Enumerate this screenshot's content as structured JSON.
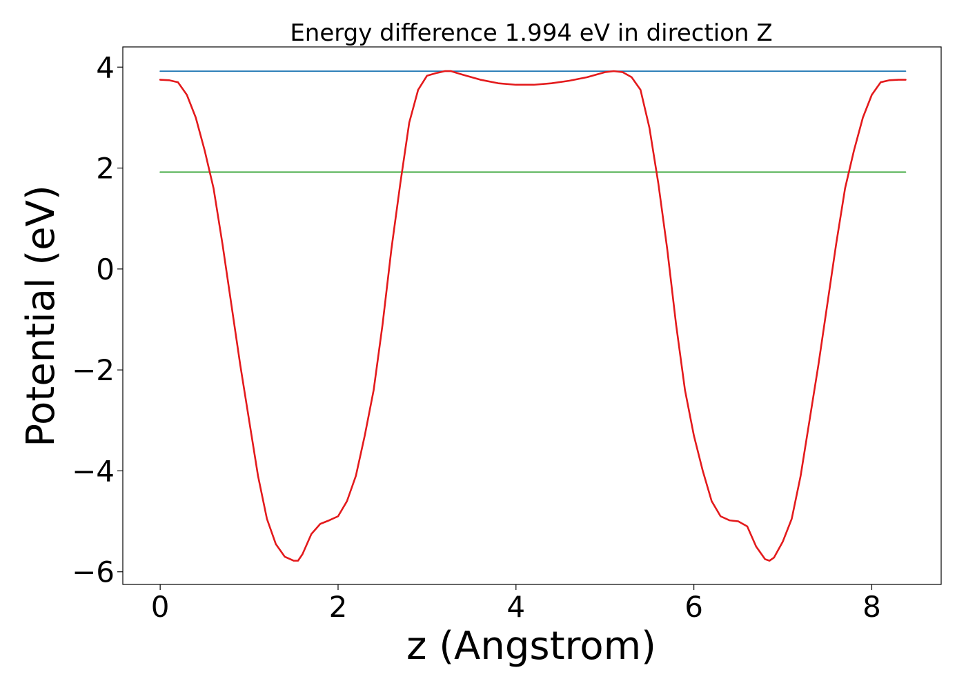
{
  "chart_data": {
    "type": "line",
    "title": "Energy difference 1.994 eV in direction Z",
    "xlabel": "z (Angstrom)",
    "ylabel": "Potential (eV)",
    "xlim": [
      -0.42,
      8.78
    ],
    "ylim": [
      -6.25,
      4.4
    ],
    "xticks": [
      0,
      2,
      4,
      6,
      8
    ],
    "yticks": [
      -6,
      -4,
      -2,
      0,
      2,
      4
    ],
    "xtick_labels": [
      "0",
      "2",
      "4",
      "6",
      "8"
    ],
    "ytick_labels": [
      "−6",
      "−4",
      "−2",
      "0",
      "2",
      "4"
    ],
    "grid": false,
    "legend": "none",
    "series": [
      {
        "color": "#e31a1c",
        "x": [
          0,
          0.1,
          0.2,
          0.3,
          0.4,
          0.5,
          0.6,
          0.7,
          0.8,
          0.9,
          1.0,
          1.1,
          1.2,
          1.3,
          1.4,
          1.5,
          1.55,
          1.6,
          1.7,
          1.8,
          1.9,
          2.0,
          2.1,
          2.2,
          2.3,
          2.4,
          2.5,
          2.6,
          2.7,
          2.8,
          2.9,
          3.0,
          3.1,
          3.2,
          3.27,
          3.4,
          3.6,
          3.8,
          4.0,
          4.2,
          4.4,
          4.6,
          4.8,
          5.0,
          5.1,
          5.2,
          5.3,
          5.4,
          5.5,
          5.6,
          5.7,
          5.8,
          5.9,
          6.0,
          6.1,
          6.2,
          6.3,
          6.4,
          6.5,
          6.6,
          6.7,
          6.8,
          6.85,
          6.9,
          7.0,
          7.1,
          7.2,
          7.3,
          7.4,
          7.5,
          7.6,
          7.7,
          7.8,
          7.9,
          8.0,
          8.1,
          8.2,
          8.3,
          8.38
        ],
        "y": [
          3.75,
          3.74,
          3.7,
          3.45,
          3.0,
          2.35,
          1.6,
          0.5,
          -0.7,
          -1.9,
          -3.0,
          -4.1,
          -4.95,
          -5.45,
          -5.7,
          -5.78,
          -5.78,
          -5.65,
          -5.25,
          -5.05,
          -4.98,
          -4.9,
          -4.6,
          -4.1,
          -3.3,
          -2.4,
          -1.1,
          0.4,
          1.7,
          2.9,
          3.55,
          3.83,
          3.88,
          3.92,
          3.92,
          3.85,
          3.75,
          3.68,
          3.65,
          3.65,
          3.68,
          3.73,
          3.8,
          3.9,
          3.92,
          3.9,
          3.8,
          3.55,
          2.8,
          1.7,
          0.4,
          -1.1,
          -2.4,
          -3.3,
          -4.0,
          -4.6,
          -4.9,
          -4.98,
          -5.0,
          -5.1,
          -5.5,
          -5.75,
          -5.78,
          -5.72,
          -5.4,
          -4.95,
          -4.1,
          -3.0,
          -1.9,
          -0.7,
          0.5,
          1.6,
          2.35,
          3.0,
          3.45,
          3.7,
          3.74,
          3.75,
          3.75
        ]
      },
      {
        "color": "#1f77b4",
        "x": [
          0,
          8.38
        ],
        "y": [
          3.92,
          3.92
        ]
      },
      {
        "color": "#2ca02c",
        "x": [
          0,
          8.38
        ],
        "y": [
          1.92,
          1.92
        ]
      }
    ]
  }
}
